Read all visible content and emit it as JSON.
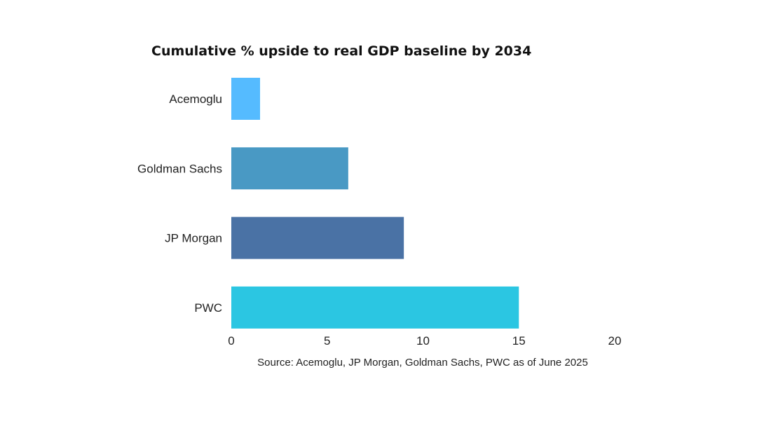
{
  "chart_data": {
    "type": "bar",
    "orientation": "horizontal",
    "title": "Cumulative % upside to real GDP baseline by 2034",
    "categories": [
      "Acemoglu",
      "Goldman Sachs",
      "JP Morgan",
      "PWC"
    ],
    "values": [
      1.5,
      6.1,
      9.0,
      15.0
    ],
    "bar_colors": [
      "#55bbff",
      "#4999c4",
      "#4a72a5",
      "#2bc6e2"
    ],
    "xlim": [
      0,
      20
    ],
    "x_ticks": [
      "0",
      "5",
      "10",
      "15",
      "20"
    ],
    "xlabel": "",
    "ylabel": "",
    "grid": false,
    "legend": "none",
    "source": "Source: Acemoglu, JP Morgan, Goldman Sachs, PWC as of June 2025"
  }
}
